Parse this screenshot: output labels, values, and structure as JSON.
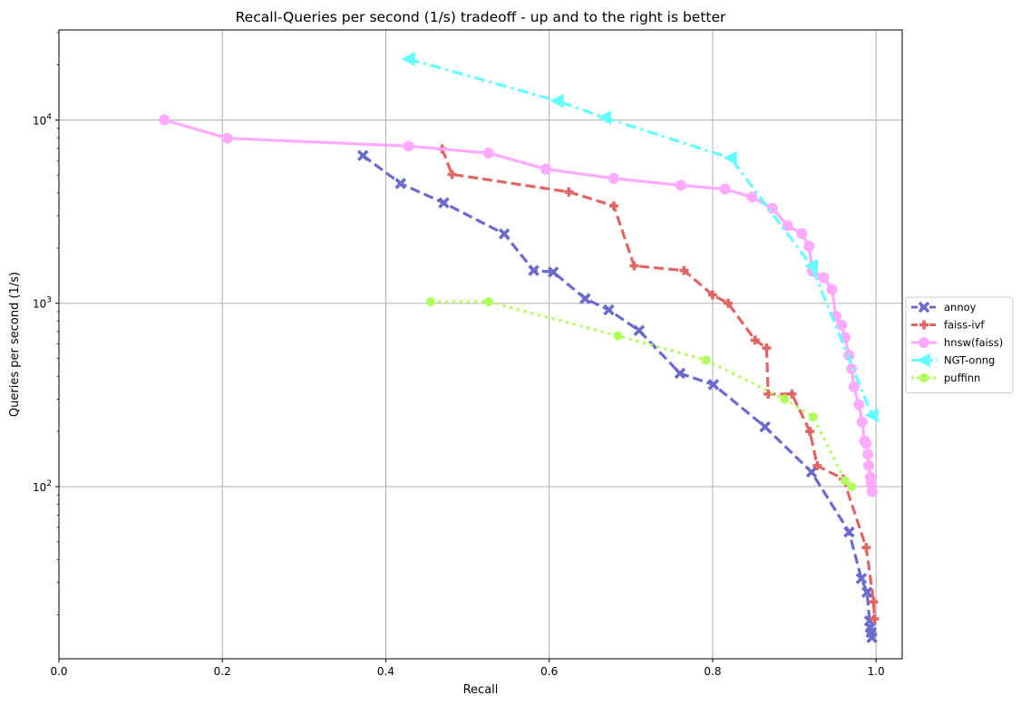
{
  "chart_data": {
    "type": "line",
    "title": "Recall-Queries per second (1/s) tradeoff - up and to the right is better",
    "xlabel": "Recall",
    "ylabel": "Queries per second (1/s)",
    "x_ticks": [
      "0.0",
      "0.2",
      "0.4",
      "0.6",
      "0.8",
      "1.0"
    ],
    "x_tick_values": [
      0.0,
      0.2,
      0.4,
      0.6,
      0.8,
      1.0
    ],
    "y_ticks": [
      {
        "value": 100,
        "base": "10",
        "exp": "2"
      },
      {
        "value": 1000,
        "base": "10",
        "exp": "3"
      },
      {
        "value": 10000,
        "base": "10",
        "exp": "4"
      }
    ],
    "xlim": [
      0.0,
      1.032
    ],
    "ylim": [
      11.5,
      31000
    ],
    "yscale": "log",
    "grid": true,
    "legend_position": "center-right",
    "series": [
      {
        "name": "annoy",
        "color": "#6b6bcc",
        "dash": "dashed",
        "marker": "x",
        "x": [
          0.372,
          0.418,
          0.471,
          0.545,
          0.581,
          0.605,
          0.644,
          0.673,
          0.71,
          0.76,
          0.801,
          0.864,
          0.921,
          0.967,
          0.982,
          0.989,
          0.992,
          0.993,
          0.994,
          0.995
        ],
        "y": [
          6400,
          4500,
          3530,
          2390,
          1510,
          1480,
          1060,
          920,
          710,
          415,
          360,
          212,
          120,
          56.5,
          31.5,
          26.5,
          18.5,
          17,
          16,
          15
        ]
      },
      {
        "name": "faiss-ivf",
        "color": "#e06666",
        "dash": "dashed",
        "marker": "plus",
        "x": [
          0.469,
          0.481,
          0.624,
          0.679,
          0.704,
          0.765,
          0.8,
          0.819,
          0.852,
          0.866,
          0.868,
          0.897,
          0.919,
          0.928,
          0.96,
          0.988,
          0.997,
          0.998
        ],
        "y": [
          6950,
          5050,
          4050,
          3400,
          1600,
          1510,
          1110,
          1000,
          630,
          570,
          320,
          320,
          200,
          130,
          110,
          46.5,
          23.5,
          19
        ]
      },
      {
        "name": "hnsw(faiss)",
        "color": "#ffaaff",
        "dash": "solid",
        "marker": "circle",
        "x": [
          0.129,
          0.206,
          0.428,
          0.526,
          0.596,
          0.679,
          0.761,
          0.815,
          0.848,
          0.873,
          0.892,
          0.909,
          0.918,
          0.922,
          0.936,
          0.946,
          0.951,
          0.958,
          0.962,
          0.967,
          0.97,
          0.973,
          0.979,
          0.983,
          0.986,
          0.988,
          0.99,
          0.991,
          0.993,
          0.994,
          0.995
        ],
        "y": [
          10000,
          7950,
          7200,
          6600,
          5400,
          4800,
          4400,
          4200,
          3800,
          3300,
          2650,
          2400,
          2050,
          1500,
          1380,
          1190,
          850,
          760,
          650,
          520,
          440,
          350,
          280,
          225,
          178,
          172,
          150,
          130,
          113,
          104,
          94
        ]
      },
      {
        "name": "NGT-onng",
        "color": "#66ffff",
        "dash": "dashdot",
        "marker": "triangle-left",
        "x": [
          0.428,
          0.61,
          0.668,
          0.822,
          0.921,
          0.995
        ],
        "y": [
          21500,
          12700,
          10300,
          6200,
          1600,
          245
        ]
      },
      {
        "name": "puffinn",
        "color": "#b0ff5a",
        "dash": "dotted",
        "marker": "hexagon",
        "x": [
          0.455,
          0.526,
          0.684,
          0.792,
          0.888,
          0.923,
          0.962,
          0.97
        ],
        "y": [
          1020,
          1020,
          665,
          490,
          300,
          240,
          108,
          100
        ]
      }
    ]
  }
}
